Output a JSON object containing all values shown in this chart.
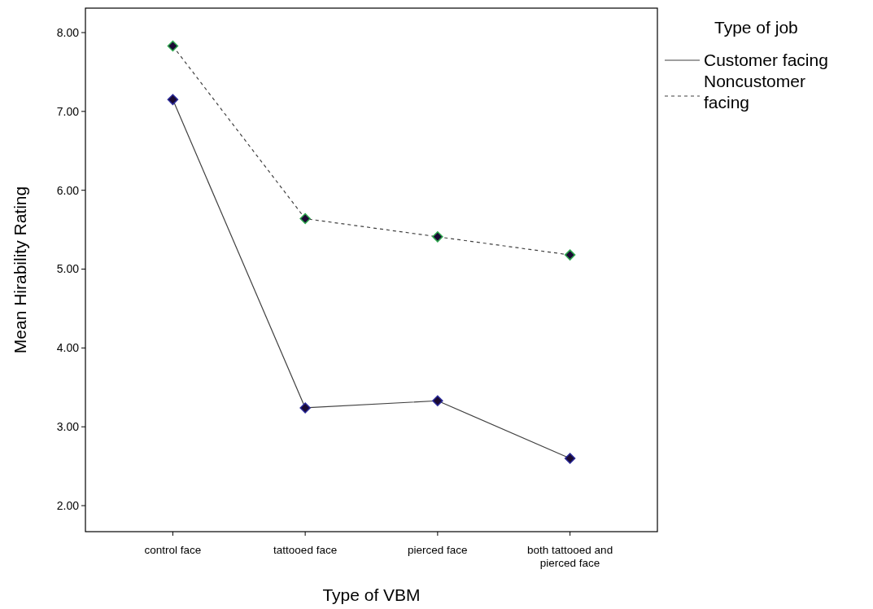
{
  "chart_data": {
    "type": "line",
    "xlabel": "Type of VBM",
    "ylabel": "Mean Hirability Rating",
    "legend_title": "Type of job",
    "legend": "right",
    "marker": "diamond",
    "grid": false,
    "categories": [
      "control face",
      "tattooed face",
      "pierced face",
      "both tattooed and pierced face"
    ],
    "ylim": [
      1.67,
      8.31
    ],
    "yticks": [
      {
        "value": 2,
        "label": "2.00"
      },
      {
        "value": 3,
        "label": "3.00"
      },
      {
        "value": 4,
        "label": "4.00"
      },
      {
        "value": 5,
        "label": "5.00"
      },
      {
        "value": 6,
        "label": "6.00"
      },
      {
        "value": 7,
        "label": "7.00"
      },
      {
        "value": 8,
        "label": "8.00"
      }
    ],
    "series": [
      {
        "name": "Customer facing",
        "color": "#404040",
        "line_style": "solid",
        "values": [
          7.15,
          3.24,
          3.33,
          2.6
        ]
      },
      {
        "name": "Noncustomer facing",
        "color": "#404040",
        "line_style": "dashed",
        "values": [
          7.83,
          5.64,
          5.41,
          5.18
        ]
      }
    ]
  }
}
